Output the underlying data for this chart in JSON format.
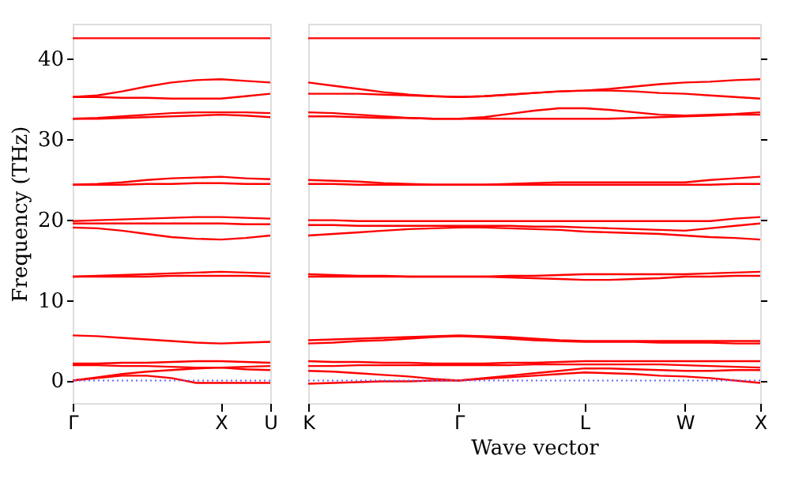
{
  "chart_data": [
    {
      "type": "line",
      "ylabel": "Frequency (THz)",
      "categories": [
        "Γ",
        null,
        null,
        null,
        null,
        null,
        "X",
        null,
        "U"
      ],
      "ylim": [
        -2.8,
        44.3
      ],
      "yticks": [
        0,
        10,
        20,
        30,
        40
      ],
      "grid": false,
      "legend": false,
      "marker": "none",
      "line_style": "solid",
      "ref_lines": [
        {
          "axis": "y",
          "value": 0,
          "color": "#6666ff",
          "line_style": "dotted"
        }
      ],
      "series": [
        {
          "color": "#ff0000",
          "values": [
            42.5,
            42.5,
            42.5,
            42.5,
            42.5,
            42.5,
            42.5,
            42.5,
            42.5
          ]
        },
        {
          "color": "#ff0000",
          "values": [
            35.2,
            35.4,
            35.9,
            36.5,
            37.0,
            37.3,
            37.4,
            37.2,
            37.0
          ]
        },
        {
          "color": "#ff0000",
          "values": [
            35.2,
            35.2,
            35.1,
            35.1,
            35.0,
            35.0,
            35.0,
            35.3,
            35.6
          ]
        },
        {
          "color": "#ff0000",
          "values": [
            32.5,
            32.6,
            32.8,
            33.0,
            33.2,
            33.3,
            33.3,
            33.3,
            33.2
          ]
        },
        {
          "color": "#ff0000",
          "values": [
            32.5,
            32.5,
            32.6,
            32.7,
            32.8,
            32.9,
            33.0,
            32.9,
            32.7
          ]
        },
        {
          "color": "#ff0000",
          "values": [
            24.3,
            24.4,
            24.6,
            24.9,
            25.1,
            25.2,
            25.3,
            25.1,
            25.0
          ]
        },
        {
          "color": "#ff0000",
          "values": [
            24.3,
            24.3,
            24.3,
            24.4,
            24.4,
            24.5,
            24.5,
            24.4,
            24.4
          ]
        },
        {
          "color": "#ff0000",
          "values": [
            19.8,
            19.9,
            20.0,
            20.1,
            20.2,
            20.3,
            20.3,
            20.2,
            20.1
          ]
        },
        {
          "color": "#ff0000",
          "values": [
            19.5,
            19.5,
            19.5,
            19.5,
            19.5,
            19.5,
            19.5,
            19.4,
            19.4
          ]
        },
        {
          "color": "#ff0000",
          "values": [
            19.0,
            18.9,
            18.6,
            18.2,
            17.8,
            17.6,
            17.5,
            17.7,
            18.0
          ]
        },
        {
          "color": "#ff0000",
          "values": [
            12.9,
            13.0,
            13.1,
            13.2,
            13.3,
            13.4,
            13.5,
            13.4,
            13.3
          ]
        },
        {
          "color": "#ff0000",
          "values": [
            12.9,
            12.9,
            12.9,
            12.9,
            13.0,
            13.0,
            13.0,
            13.0,
            12.9
          ]
        },
        {
          "color": "#ff0000",
          "values": [
            5.6,
            5.5,
            5.3,
            5.1,
            4.9,
            4.7,
            4.6,
            4.7,
            4.8
          ]
        },
        {
          "color": "#ff0000",
          "values": [
            2.1,
            2.1,
            2.2,
            2.2,
            2.3,
            2.4,
            2.4,
            2.3,
            2.2
          ]
        },
        {
          "color": "#ff0000",
          "values": [
            1.9,
            1.9,
            1.8,
            1.8,
            1.7,
            1.6,
            1.6,
            1.7,
            1.8
          ]
        },
        {
          "color": "#ff0000",
          "values": [
            0,
            0.4,
            0.8,
            1.1,
            1.3,
            1.5,
            1.6,
            1.4,
            1.3
          ]
        },
        {
          "color": "#ff0000",
          "values": [
            0,
            0.3,
            0.6,
            0.6,
            0.3,
            -0.3,
            -0.3,
            -0.3,
            -0.3
          ]
        }
      ]
    },
    {
      "type": "line",
      "xlabel": "Wave vector",
      "categories": [
        "K",
        null,
        null,
        null,
        null,
        null,
        "Γ",
        null,
        null,
        null,
        null,
        "L",
        null,
        null,
        null,
        "W",
        null,
        null,
        "X"
      ],
      "ylim": [
        -2.8,
        44.3
      ],
      "yticks": [
        0,
        10,
        20,
        30,
        40
      ],
      "tick_labels": "x",
      "grid": false,
      "legend": false,
      "marker": "none",
      "line_style": "solid",
      "ref_lines": [
        {
          "axis": "y",
          "value": 0,
          "color": "#6666ff",
          "line_style": "dotted"
        }
      ],
      "series": [
        {
          "color": "#ff0000",
          "values": [
            42.5,
            42.5,
            42.5,
            42.5,
            42.5,
            42.5,
            42.5,
            42.5,
            42.5,
            42.5,
            42.5,
            42.5,
            42.5,
            42.5,
            42.5,
            42.5,
            42.5,
            42.5,
            42.5
          ]
        },
        {
          "color": "#ff0000",
          "values": [
            37.0,
            36.6,
            36.2,
            35.8,
            35.5,
            35.3,
            35.2,
            35.3,
            35.5,
            35.7,
            35.9,
            36.0,
            36.2,
            36.5,
            36.8,
            37.0,
            37.1,
            37.3,
            37.4
          ]
        },
        {
          "color": "#ff0000",
          "values": [
            35.6,
            35.6,
            35.6,
            35.5,
            35.4,
            35.3,
            35.2,
            35.3,
            35.5,
            35.7,
            35.9,
            36.0,
            36.0,
            35.9,
            35.7,
            35.6,
            35.4,
            35.2,
            35.0
          ]
        },
        {
          "color": "#ff0000",
          "values": [
            33.3,
            33.2,
            33.0,
            32.8,
            32.6,
            32.5,
            32.5,
            32.7,
            33.1,
            33.5,
            33.8,
            33.8,
            33.6,
            33.3,
            33.0,
            32.9,
            33.0,
            33.1,
            33.3
          ]
        },
        {
          "color": "#ff0000",
          "values": [
            32.8,
            32.8,
            32.7,
            32.6,
            32.6,
            32.5,
            32.5,
            32.5,
            32.5,
            32.5,
            32.5,
            32.5,
            32.5,
            32.6,
            32.7,
            32.8,
            32.9,
            33.0,
            33.0
          ]
        },
        {
          "color": "#ff0000",
          "values": [
            24.9,
            24.8,
            24.7,
            24.5,
            24.4,
            24.3,
            24.3,
            24.3,
            24.4,
            24.5,
            24.6,
            24.6,
            24.6,
            24.6,
            24.6,
            24.6,
            24.9,
            25.1,
            25.3
          ]
        },
        {
          "color": "#ff0000",
          "values": [
            24.4,
            24.4,
            24.3,
            24.3,
            24.3,
            24.3,
            24.3,
            24.3,
            24.3,
            24.3,
            24.3,
            24.3,
            24.3,
            24.3,
            24.3,
            24.3,
            24.3,
            24.4,
            24.4
          ]
        },
        {
          "color": "#ff0000",
          "values": [
            19.9,
            19.9,
            19.8,
            19.8,
            19.8,
            19.8,
            19.8,
            19.8,
            19.8,
            19.8,
            19.8,
            19.8,
            19.8,
            19.8,
            19.8,
            19.8,
            19.8,
            20.1,
            20.3
          ]
        },
        {
          "color": "#ff0000",
          "values": [
            19.3,
            19.3,
            19.2,
            19.2,
            19.2,
            19.2,
            19.2,
            19.2,
            19.2,
            19.1,
            19.1,
            19.0,
            18.9,
            18.8,
            18.7,
            18.6,
            18.9,
            19.2,
            19.5
          ]
        },
        {
          "color": "#ff0000",
          "values": [
            18.0,
            18.2,
            18.4,
            18.6,
            18.8,
            18.9,
            19.0,
            19.0,
            18.9,
            18.8,
            18.7,
            18.5,
            18.4,
            18.3,
            18.2,
            18.0,
            17.8,
            17.7,
            17.5
          ]
        },
        {
          "color": "#ff0000",
          "values": [
            13.2,
            13.1,
            13.0,
            13.0,
            12.9,
            12.9,
            12.9,
            12.9,
            13.0,
            13.0,
            13.1,
            13.2,
            13.2,
            13.2,
            13.2,
            13.2,
            13.3,
            13.4,
            13.5
          ]
        },
        {
          "color": "#ff0000",
          "values": [
            12.9,
            12.9,
            12.9,
            12.9,
            12.9,
            12.9,
            12.9,
            12.9,
            12.8,
            12.7,
            12.6,
            12.5,
            12.5,
            12.6,
            12.7,
            12.9,
            12.9,
            13.0,
            13.0
          ]
        },
        {
          "color": "#ff0000",
          "values": [
            5.0,
            5.1,
            5.2,
            5.3,
            5.4,
            5.5,
            5.6,
            5.5,
            5.4,
            5.2,
            5.0,
            4.9,
            4.9,
            4.9,
            4.9,
            4.9,
            4.9,
            4.9,
            4.9
          ]
        },
        {
          "color": "#ff0000",
          "values": [
            4.6,
            4.7,
            4.9,
            5.0,
            5.2,
            5.4,
            5.5,
            5.4,
            5.2,
            5.0,
            4.9,
            4.8,
            4.8,
            4.8,
            4.7,
            4.7,
            4.7,
            4.6,
            4.6
          ]
        },
        {
          "color": "#ff0000",
          "values": [
            2.4,
            2.3,
            2.3,
            2.2,
            2.2,
            2.1,
            2.1,
            2.1,
            2.2,
            2.2,
            2.3,
            2.4,
            2.4,
            2.4,
            2.4,
            2.4,
            2.4,
            2.4,
            2.4
          ]
        },
        {
          "color": "#ff0000",
          "values": [
            1.8,
            1.8,
            1.9,
            1.9,
            1.9,
            1.9,
            1.9,
            1.9,
            1.9,
            2.0,
            2.0,
            2.0,
            2.0,
            2.0,
            2.0,
            1.9,
            1.8,
            1.7,
            1.6
          ]
        },
        {
          "color": "#ff0000",
          "values": [
            1.2,
            1.1,
            0.9,
            0.7,
            0.5,
            0.2,
            0,
            0.3,
            0.6,
            0.9,
            1.2,
            1.5,
            1.5,
            1.4,
            1.3,
            1.2,
            1.2,
            1.3,
            1.3
          ]
        },
        {
          "color": "#ff0000",
          "values": [
            -0.4,
            -0.3,
            -0.2,
            -0.1,
            -0.1,
            0,
            0,
            0.2,
            0.4,
            0.6,
            0.8,
            1.0,
            0.9,
            0.8,
            0.6,
            0.5,
            0.3,
            0,
            -0.3
          ]
        }
      ]
    }
  ]
}
